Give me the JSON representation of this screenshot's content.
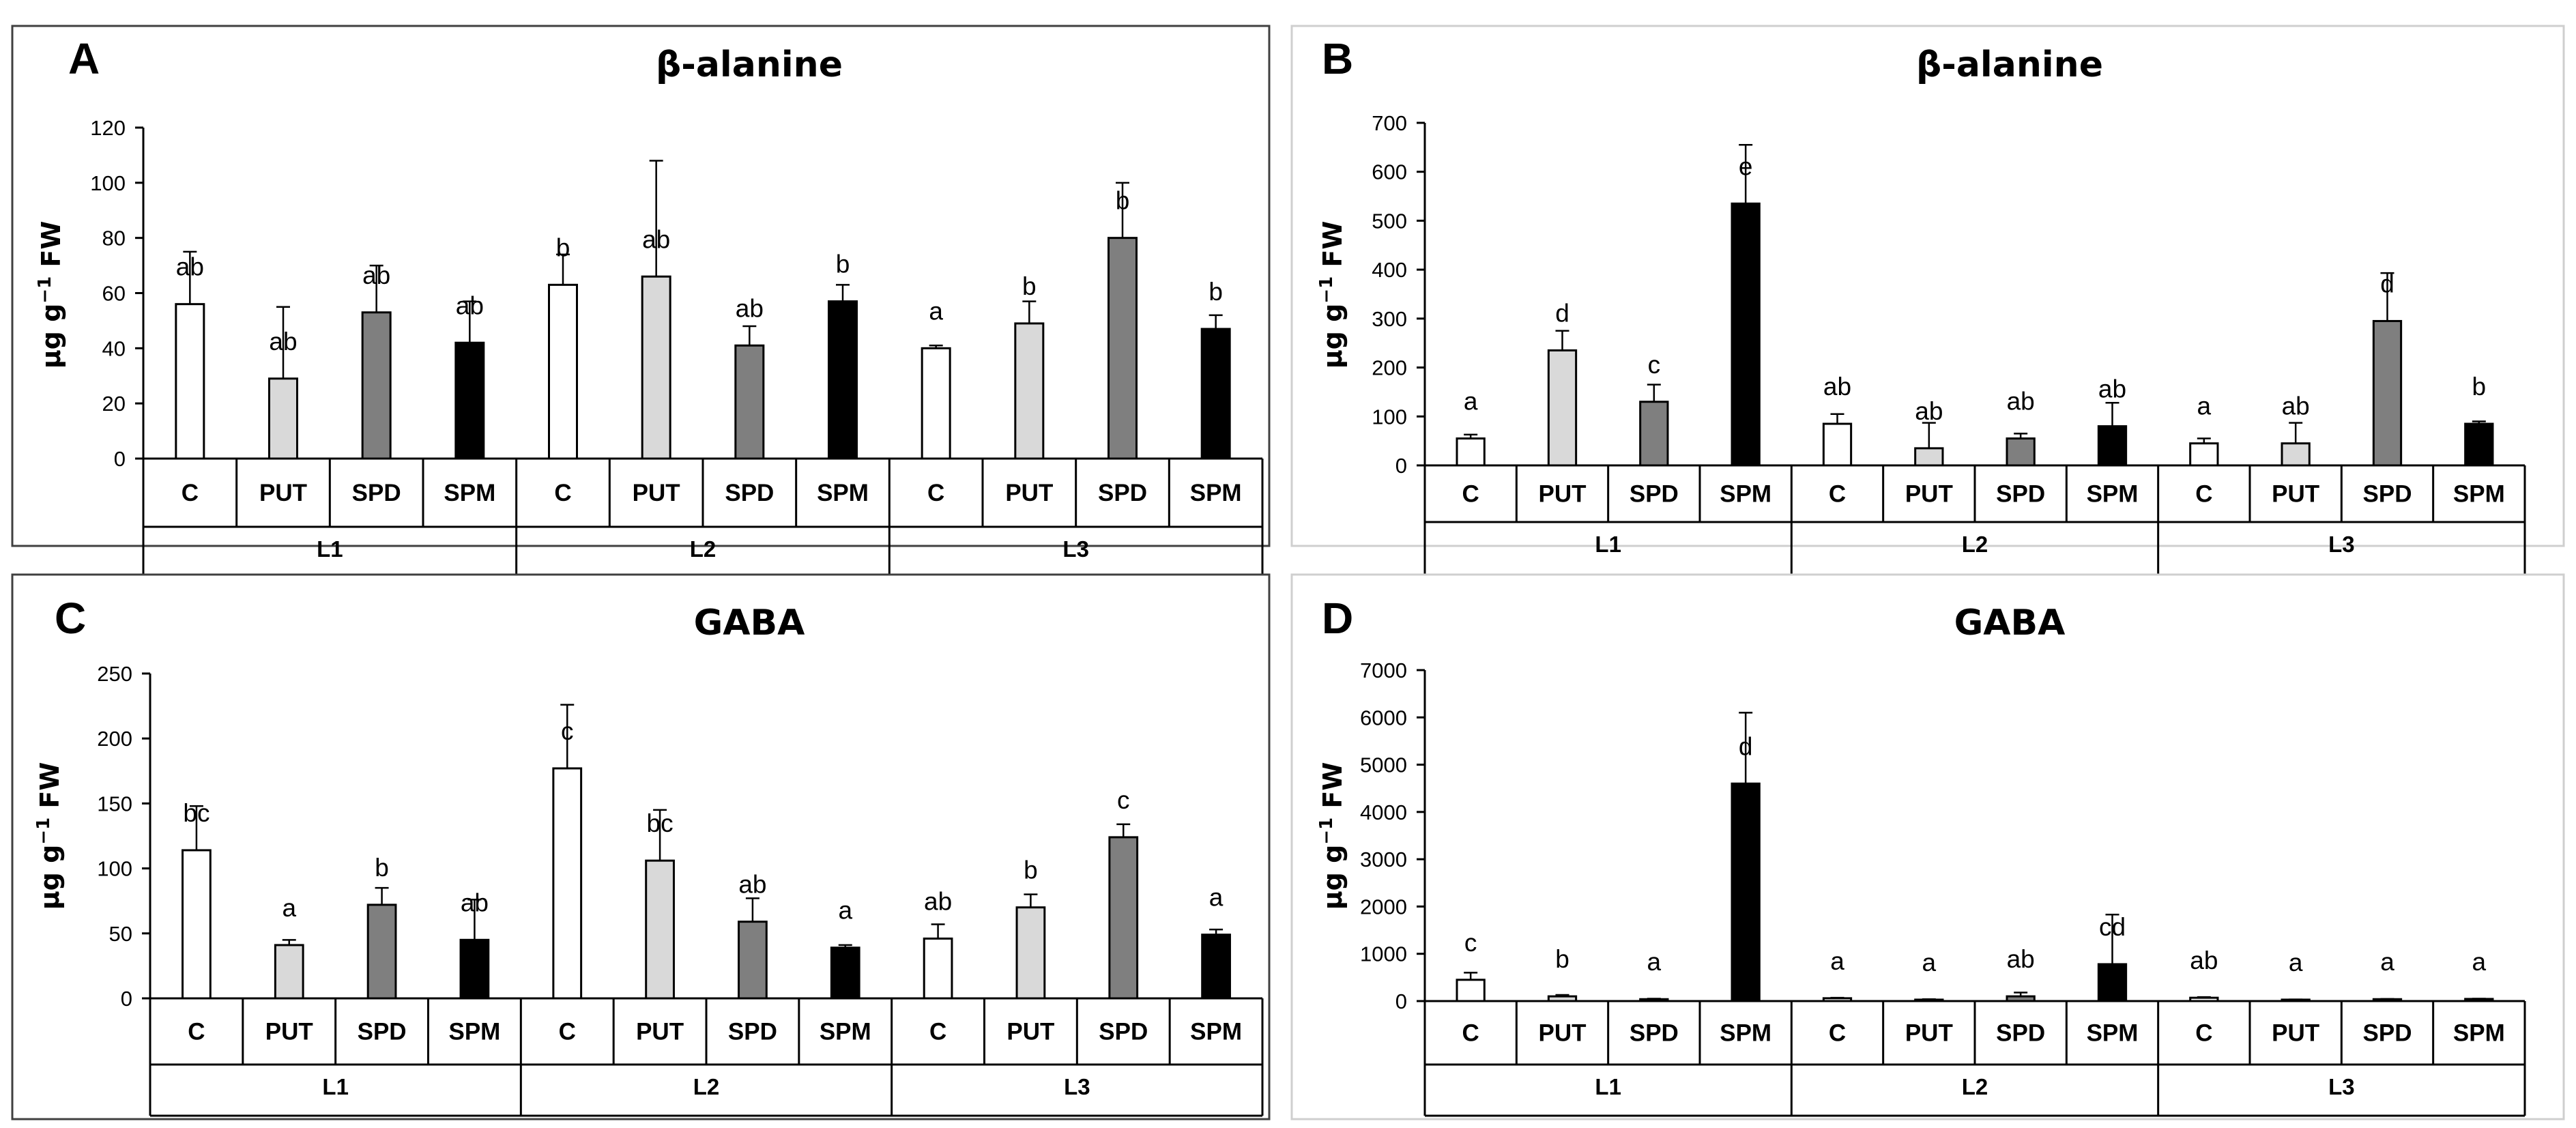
{
  "colors": {
    "C": "#ffffff",
    "PUT": "#d9d9d9",
    "SPD": "#7f7f7f",
    "SPM": "#000000"
  },
  "chart_data": [
    {
      "panel": "A",
      "type": "bar",
      "title": "β-alanine",
      "ylabel": "µg g⁻¹ FW",
      "ylabel_main": "µg g",
      "ylabel_exp": "−1",
      "ylabel_unit": " FW",
      "ylim": [
        0,
        120
      ],
      "yticks": [
        0,
        20,
        40,
        60,
        80,
        100,
        120
      ],
      "ytick_labels": [
        "0",
        "20",
        "40",
        "60",
        "80",
        "100",
        "120"
      ],
      "groups": [
        "L1",
        "L2",
        "L3"
      ],
      "treatments": [
        "C",
        "PUT",
        "SPD",
        "SPM"
      ],
      "values": [
        56,
        29,
        53,
        42,
        63,
        66,
        41,
        57,
        40,
        49,
        80,
        47
      ],
      "errors": [
        19,
        26,
        17,
        15,
        11,
        42,
        7,
        6,
        1,
        8,
        20,
        5
      ],
      "letters": [
        "ab",
        "ab",
        "ab",
        "ab",
        "b",
        "ab",
        "ab",
        "b",
        "a",
        "b",
        "b",
        "b"
      ]
    },
    {
      "panel": "B",
      "type": "bar",
      "title": "β-alanine",
      "ylabel": "µg g⁻¹ FW",
      "ylabel_main": "µg g",
      "ylabel_exp": "−1",
      "ylabel_unit": " FW",
      "ylim": [
        0,
        700
      ],
      "yticks": [
        0,
        100,
        200,
        300,
        400,
        500,
        600,
        700
      ],
      "ytick_labels": [
        "0",
        "100",
        "200",
        "300",
        "400",
        "500",
        "600",
        "700"
      ],
      "groups": [
        "L1",
        "L2",
        "L3"
      ],
      "treatments": [
        "C",
        "PUT",
        "SPD",
        "SPM"
      ],
      "values": [
        55,
        235,
        130,
        535,
        85,
        35,
        55,
        80,
        45,
        45,
        295,
        85
      ],
      "errors": [
        8,
        40,
        35,
        120,
        20,
        52,
        10,
        48,
        10,
        42,
        98,
        5
      ],
      "letters": [
        "a",
        "d",
        "c",
        "e",
        "ab",
        "ab",
        "ab",
        "ab",
        "a",
        "ab",
        "d",
        "b"
      ]
    },
    {
      "panel": "C",
      "type": "bar",
      "title": "GABA",
      "ylabel": "µg g⁻¹ FW",
      "ylabel_main": "µg g",
      "ylabel_exp": "−1",
      "ylabel_unit": " FW",
      "ylim": [
        0,
        250
      ],
      "yticks": [
        0,
        50,
        100,
        150,
        200,
        250
      ],
      "ytick_labels": [
        "0",
        "50",
        "100",
        "150",
        "200",
        "250"
      ],
      "groups": [
        "L1",
        "L2",
        "L3"
      ],
      "treatments": [
        "C",
        "PUT",
        "SPD",
        "SPM"
      ],
      "values": [
        114,
        41,
        72,
        45,
        177,
        106,
        59,
        39,
        46,
        70,
        124,
        49
      ],
      "errors": [
        34,
        4,
        13,
        31,
        49,
        39,
        18,
        2,
        11,
        10,
        10,
        4
      ],
      "letters": [
        "bc",
        "a",
        "b",
        "ab",
        "c",
        "bc",
        "ab",
        "a",
        "ab",
        "b",
        "c",
        "a"
      ]
    },
    {
      "panel": "D",
      "type": "bar",
      "title": "GABA",
      "ylabel": "µg g⁻¹ FW",
      "ylabel_main": "µg g",
      "ylabel_exp": "−1",
      "ylabel_unit": " FW",
      "ylim": [
        0,
        7000
      ],
      "yticks": [
        0,
        1000,
        2000,
        3000,
        4000,
        5000,
        6000,
        7000
      ],
      "ytick_labels": [
        "0",
        "1000",
        "2000",
        "3000",
        "4000",
        "5000",
        "6000",
        "7000"
      ],
      "groups": [
        "L1",
        "L2",
        "L3"
      ],
      "treatments": [
        "C",
        "PUT",
        "SPD",
        "SPM"
      ],
      "values": [
        450,
        100,
        40,
        4600,
        60,
        30,
        100,
        780,
        70,
        30,
        40,
        45
      ],
      "errors": [
        150,
        30,
        10,
        1500,
        10,
        10,
        80,
        1050,
        15,
        5,
        5,
        5
      ],
      "letters": [
        "c",
        "b",
        "a",
        "d",
        "a",
        "a",
        "ab",
        "cd",
        "ab",
        "a",
        "a",
        "a"
      ]
    }
  ]
}
